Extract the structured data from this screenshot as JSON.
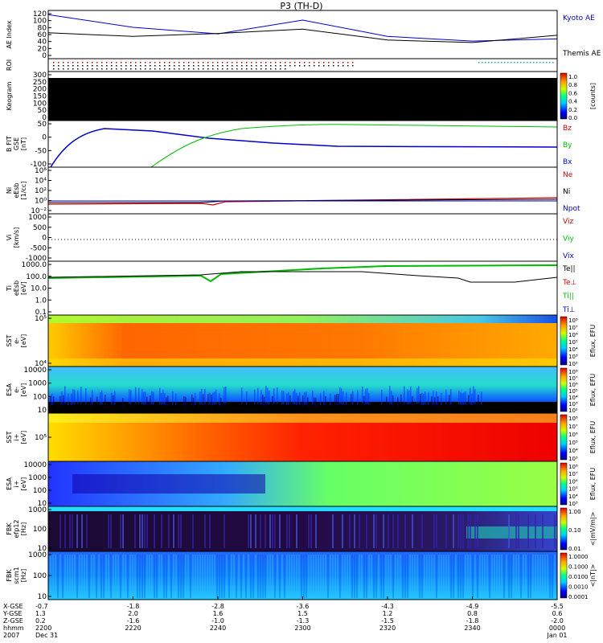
{
  "title": "P3 (TH-D)",
  "panels": [
    {
      "id": "ae",
      "ylabel": [
        "AE Index"
      ],
      "ticks": [
        "120",
        "100",
        "80",
        "60",
        "40",
        "20",
        "0"
      ],
      "legend": [
        {
          "text": "Kyoto AE",
          "color": "#0000cc"
        },
        {
          "text": "Themis AE",
          "color": "#000000"
        }
      ]
    },
    {
      "id": "roi",
      "ylabel": [
        "ROI"
      ],
      "ticks": [],
      "legend": []
    },
    {
      "id": "keogram",
      "ylabel": [
        "Keogram"
      ],
      "ticks": [
        "300",
        "250",
        "200",
        "150",
        "100",
        "50",
        "0"
      ],
      "legend": [],
      "colorbar": {
        "ticks": [
          "1.0",
          "0.8",
          "0.6",
          "0.4",
          "0.2",
          "0.0"
        ],
        "label": "[counts]"
      }
    },
    {
      "id": "bfield",
      "ylabel": [
        "B FIT",
        "GSE",
        "[nT]"
      ],
      "ticks": [
        "50",
        "0",
        "-50",
        "-100"
      ],
      "legend": [
        {
          "text": "Bz",
          "color": "#cc0000"
        },
        {
          "text": "By",
          "color": "#00bb00"
        },
        {
          "text": "Bx",
          "color": "#0000cc"
        }
      ]
    },
    {
      "id": "density",
      "ylabel": [
        "Ni",
        "eEsb",
        "[1/cc]"
      ],
      "ticks": [
        "10⁶",
        "10⁴",
        "10²",
        "10⁰",
        "10⁻²"
      ],
      "legend": [
        {
          "text": "Ne",
          "color": "#cc0000"
        },
        {
          "text": "Ni",
          "color": "#000000"
        },
        {
          "text": "Npot",
          "color": "#0000cc"
        }
      ]
    },
    {
      "id": "velocity",
      "ylabel": [
        "Vi",
        "[km/s]"
      ],
      "ticks": [
        "1000",
        "500",
        "0",
        "-500",
        "-1000"
      ],
      "legend": [
        {
          "text": "Viz",
          "color": "#cc0000"
        },
        {
          "text": "Viy",
          "color": "#00bb00"
        },
        {
          "text": "Vix",
          "color": "#0000cc"
        }
      ]
    },
    {
      "id": "temperature",
      "ylabel": [
        "Ti",
        "eEsb",
        "[eV]"
      ],
      "ticks": [
        "1000.0",
        "100.0",
        "10.0",
        "1.0",
        "0.1"
      ],
      "legend": [
        {
          "text": "Te||",
          "color": "#000000"
        },
        {
          "text": "Te⊥",
          "color": "#cc0000"
        },
        {
          "text": "Ti||",
          "color": "#00bb00"
        },
        {
          "text": "Ti⊥",
          "color": "#0000cc"
        }
      ]
    },
    {
      "id": "sst_e",
      "ylabel": [
        "SST",
        "e-",
        "[eV]"
      ],
      "ticks": [
        "10⁵",
        "10⁴"
      ],
      "legend": [],
      "colorbar": {
        "ticks": [
          "10⁸",
          "10⁷",
          "10⁶",
          "10⁵",
          "10⁴",
          "10³",
          "10²"
        ],
        "label": "Eflux, EFU"
      }
    },
    {
      "id": "esa_e",
      "ylabel": [
        "ESA",
        "e-",
        "[eV]"
      ],
      "ticks": [
        "10000",
        "1000",
        "100",
        "10"
      ],
      "legend": [],
      "colorbar": {
        "ticks": [
          "10⁸",
          "10⁷",
          "10⁶",
          "10⁵",
          "10⁴",
          "10³",
          "10²"
        ],
        "label": "Eflux, EFU"
      }
    },
    {
      "id": "sst_i",
      "ylabel": [
        "SST",
        "i+",
        "[eV]"
      ],
      "ticks": [
        "10⁵"
      ],
      "legend": [],
      "colorbar": {
        "ticks": [
          "10⁸",
          "10⁷",
          "10⁶",
          "10⁵",
          "10⁴",
          "10³"
        ],
        "label": "Eflux, EFU"
      }
    },
    {
      "id": "esa_i",
      "ylabel": [
        "ESA",
        "i+",
        "[eV]"
      ],
      "ticks": [
        "10000",
        "1000",
        "100",
        "10"
      ],
      "legend": [],
      "colorbar": {
        "ticks": [
          "10⁸",
          "10⁷",
          "10⁶",
          "10⁵",
          "10⁴",
          "10³"
        ],
        "label": "Eflux, EFU"
      }
    },
    {
      "id": "fbk_e",
      "ylabel": [
        "FBK",
        "efp12",
        "[Hz]"
      ],
      "ticks": [
        "1000",
        "100",
        "10"
      ],
      "legend": [],
      "colorbar": {
        "ticks": [
          "1.00",
          "0.10",
          "0.01"
        ],
        "label": "<|mV/m|>"
      }
    },
    {
      "id": "fbk_b",
      "ylabel": [
        "FBK",
        "scm1",
        "[Hz]"
      ],
      "ticks": [
        "1000",
        "100",
        "10"
      ],
      "legend": [],
      "colorbar": {
        "ticks": [
          "1.0000",
          "0.1000",
          "0.0100",
          "0.0010",
          "0.0001"
        ],
        "label": "<|nT|>"
      }
    }
  ],
  "footer": {
    "rowlabels": [
      "X-GSE",
      "Y-GSE",
      "Z-GSE",
      "hhmm",
      "2007"
    ],
    "columns": [
      {
        "x": "-0.7",
        "y": "1.3",
        "z": "0.2",
        "t": "2200",
        "d": "Dec 31"
      },
      {
        "x": "-1.8",
        "y": "2.0",
        "z": "-1.6",
        "t": "2220",
        "d": ""
      },
      {
        "x": "-2.8",
        "y": "1.6",
        "z": "-1.0",
        "t": "2240",
        "d": ""
      },
      {
        "x": "-3.6",
        "y": "1.5",
        "z": "-1.3",
        "t": "2300",
        "d": ""
      },
      {
        "x": "-4.3",
        "y": "1.2",
        "z": "-1.5",
        "t": "2320",
        "d": ""
      },
      {
        "x": "-4.9",
        "y": "0.8",
        "z": "-1.8",
        "t": "2340",
        "d": ""
      },
      {
        "x": "-5.5",
        "y": "0.6",
        "z": "-2.0",
        "t": "0000",
        "d": "Jan 01"
      }
    ]
  },
  "chart_data": {
    "type": "line",
    "title": "P3 (TH-D)",
    "x": [
      "2200",
      "2220",
      "2240",
      "2300",
      "2320",
      "2340",
      "0000"
    ],
    "series": [
      {
        "name": "Kyoto AE",
        "values": [
          115,
          80,
          62,
          100,
          55,
          42,
          48
        ]
      },
      {
        "name": "Themis AE",
        "values": [
          65,
          55,
          63,
          75,
          45,
          38,
          58
        ]
      }
    ],
    "ylabel": "AE Index",
    "ylim": [
      0,
      120
    ],
    "grid": false
  }
}
